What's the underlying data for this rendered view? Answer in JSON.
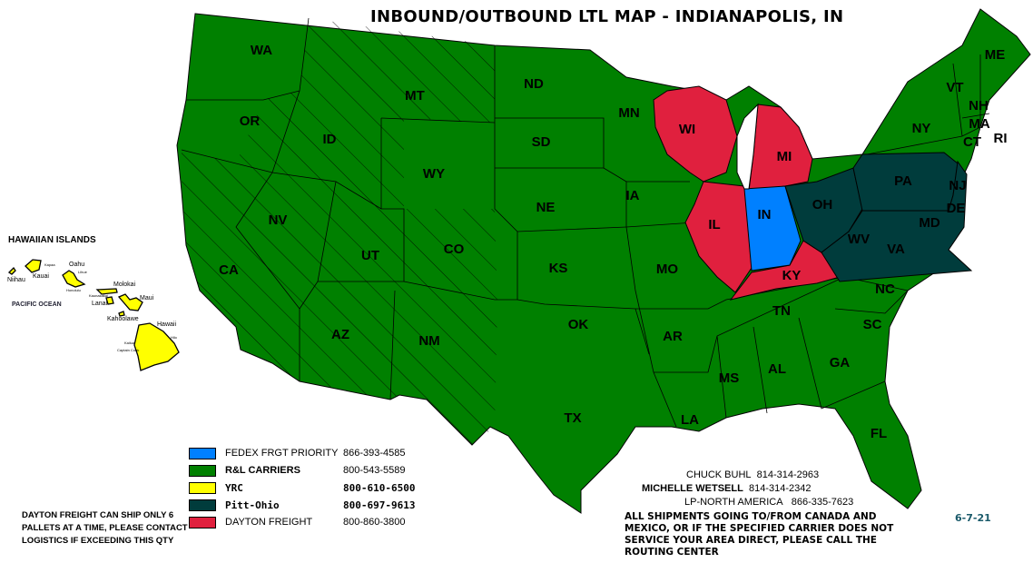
{
  "title": "INBOUND/OUTBOUND LTL MAP - INDIANAPOLIS, IN",
  "colors": {
    "fedex": "#0080ff",
    "rl": "#008000",
    "yrc": "#ffff00",
    "pitt_ohio": "#003c3c",
    "dayton": "#e0203e"
  },
  "states": [
    "WA",
    "OR",
    "CA",
    "ID",
    "NV",
    "MT",
    "WY",
    "UT",
    "AZ",
    "CO",
    "NM",
    "ND",
    "SD",
    "NE",
    "KS",
    "OK",
    "TX",
    "MN",
    "IA",
    "MO",
    "AR",
    "LA",
    "WI",
    "IL",
    "MI",
    "IN",
    "KY",
    "TN",
    "MS",
    "AL",
    "GA",
    "FL",
    "SC",
    "NC",
    "OH",
    "WV",
    "VA",
    "PA",
    "MD",
    "DE",
    "NJ",
    "NY",
    "VT",
    "NH",
    "ME",
    "MA",
    "CT",
    "RI"
  ],
  "hawaii": {
    "title": "HAWAIIAN ISLANDS",
    "ocean": "PACIFIC OCEAN",
    "islands": [
      "Niihau",
      "Kauai",
      "Oahu",
      "Molokai",
      "Lanai",
      "Maui",
      "Kahoolawe",
      "Hawaii"
    ],
    "towns": [
      "Kapaa",
      "Lihue",
      "Honolulu",
      "Kaunakakai",
      "Hilo",
      "Kailua",
      "Captain Cook"
    ]
  },
  "legend": [
    {
      "carrier": "FEDEX FRGT PRIORITY",
      "phone": "866-393-4585",
      "color_key": "fedex"
    },
    {
      "carrier": "R&L CARRIERS",
      "phone": "800-543-5589",
      "color_key": "rl"
    },
    {
      "carrier": "YRC",
      "phone": "800-610-6500",
      "color_key": "yrc"
    },
    {
      "carrier": "Pitt-Ohio",
      "phone": "800-697-9613",
      "color_key": "pitt_ohio"
    },
    {
      "carrier": "DAYTON FREIGHT",
      "phone": "800-860-3800",
      "color_key": "dayton"
    }
  ],
  "notes": {
    "dayton": "DAYTON FREIGHT CAN SHIP ONLY 6 PALLETS AT A TIME, PLEASE CONTACT LOGISTICS IF EXCEEDING THIS QTY",
    "routing": "ALL SHIPMENTS GOING TO/FROM CANADA AND MEXICO, OR IF THE SPECIFIED CARRIER DOES NOT SERVICE YOUR AREA DIRECT, PLEASE CALL THE ROUTING CENTER"
  },
  "contacts": [
    {
      "name": "CHUCK BUHL",
      "phone": "814-314-2963"
    },
    {
      "name": "MICHELLE WETSELL",
      "phone": "814-314-2342"
    },
    {
      "name": "LP-NORTH AMERICA",
      "phone": "866-335-7623"
    }
  ],
  "date": "6-7-21"
}
